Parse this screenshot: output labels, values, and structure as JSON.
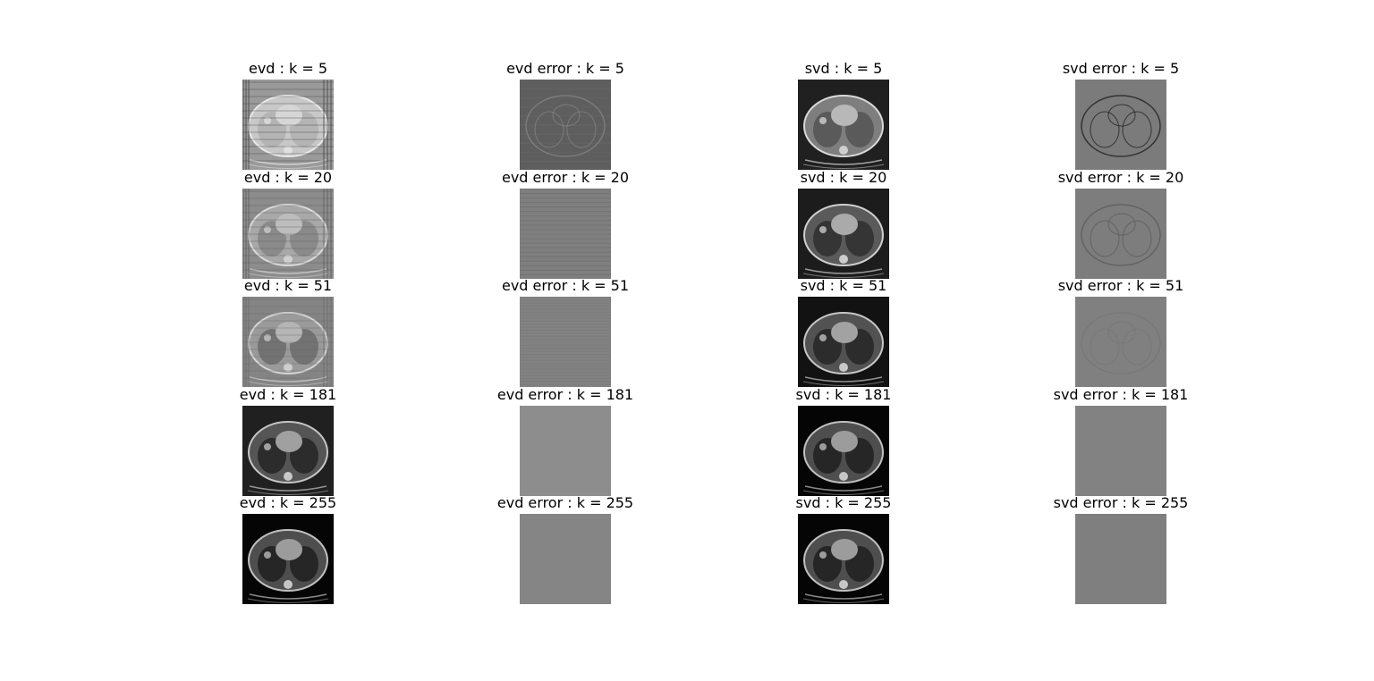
{
  "figure": {
    "columns": [
      "evd",
      "evd-error",
      "svd",
      "svd-error"
    ],
    "rows": [
      {
        "k": 5,
        "titles": [
          "evd : k = 5",
          "evd error : k = 5",
          "svd : k = 5",
          "svd error : k = 5"
        ]
      },
      {
        "k": 20,
        "titles": [
          "evd : k = 20",
          "evd error : k = 20",
          "svd : k = 20",
          "svd error : k = 20"
        ]
      },
      {
        "k": 51,
        "titles": [
          "evd : k = 51",
          "evd error : k = 51",
          "svd : k = 51",
          "svd error : k = 51"
        ]
      },
      {
        "k": 181,
        "titles": [
          "evd : k = 181",
          "evd error : k = 181",
          "svd : k = 181",
          "svd error : k = 181"
        ]
      },
      {
        "k": 255,
        "titles": [
          "evd : k = 255",
          "evd error : k = 255",
          "svd : k = 255",
          "svd error : k = 255"
        ]
      }
    ]
  }
}
